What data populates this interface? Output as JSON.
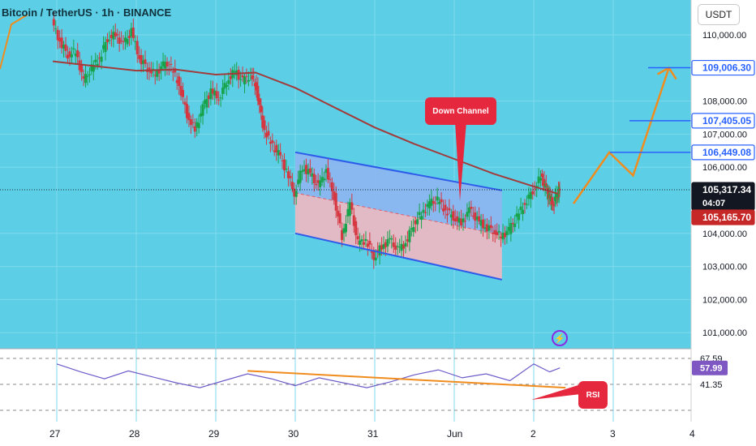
{
  "header": {
    "title": "Bitcoin / TetherUS · 1h · BINANCE"
  },
  "price_axis": {
    "currency": "USDT",
    "tick_labels": [
      "110,000.00",
      "108,000.00",
      "107,000.00",
      "106,000.00",
      "104,000.00",
      "103,000.00",
      "102,000.00",
      "101,000.00"
    ]
  },
  "price_badges": [
    {
      "value": "109,006.30",
      "style": "outline-blue"
    },
    {
      "value": "107,405.05",
      "style": "outline-blue"
    },
    {
      "value": "106,449.08",
      "style": "outline-blue"
    },
    {
      "value": "105,317.34",
      "style": "dark",
      "sub": "04:07"
    },
    {
      "value": "105,165.70",
      "style": "red"
    }
  ],
  "rsi_axis": {
    "labels": [
      "67.59",
      "57.99",
      "41.35"
    ]
  },
  "time_axis": {
    "labels": [
      "27",
      "28",
      "29",
      "30",
      "31",
      "Jun",
      "2",
      "3",
      "4"
    ]
  },
  "annotations": {
    "down_channel": "Down Channel",
    "rsi": "RSI"
  },
  "icons": {
    "alert": "lightning-bolt-icon"
  },
  "colors": {
    "background": "#5ccfe6",
    "bull": "#16a34a",
    "bear": "#d6363f",
    "ma_line": "#a23b3b",
    "channel_line": "#2f5bea",
    "channel_upper_fill": "#8fb4f0",
    "channel_lower_fill": "#f0b7c2",
    "projection": "#f08c1e",
    "rsi_line": "#6c5cc9",
    "rsi_trend": "#f08c1e",
    "badge_blue": "#2962ff",
    "badge_red": "#c62828"
  },
  "chart_data": {
    "type": "candlestick",
    "title": "Bitcoin / TetherUS · 1h · BINANCE",
    "timeframe": "1h",
    "x": [
      "27",
      "28",
      "29",
      "30",
      "31",
      "Jun",
      "2",
      "3",
      "4"
    ],
    "ylim": [
      100800,
      110500
    ],
    "y_ticks": [
      110000,
      108000,
      107000,
      106000,
      104000,
      103000,
      102000,
      101000
    ],
    "last_price": 105317.34,
    "bar_countdown": "04:07",
    "marked_price": 105165.7,
    "price_path": [
      {
        "t": -0.05,
        "p": 110400
      },
      {
        "t": 0.05,
        "p": 109800
      },
      {
        "t": 0.15,
        "p": 109400
      },
      {
        "t": 0.25,
        "p": 109500
      },
      {
        "t": 0.35,
        "p": 108600
      },
      {
        "t": 0.45,
        "p": 109000
      },
      {
        "t": 0.55,
        "p": 109300
      },
      {
        "t": 0.65,
        "p": 109900
      },
      {
        "t": 0.75,
        "p": 110000
      },
      {
        "t": 0.85,
        "p": 109700
      },
      {
        "t": 0.95,
        "p": 110100
      },
      {
        "t": 1.05,
        "p": 109300
      },
      {
        "t": 1.15,
        "p": 109000
      },
      {
        "t": 1.25,
        "p": 108800
      },
      {
        "t": 1.35,
        "p": 109100
      },
      {
        "t": 1.45,
        "p": 109000
      },
      {
        "t": 1.55,
        "p": 108500
      },
      {
        "t": 1.65,
        "p": 107600
      },
      {
        "t": 1.75,
        "p": 107100
      },
      {
        "t": 1.85,
        "p": 107800
      },
      {
        "t": 1.95,
        "p": 108300
      },
      {
        "t": 2.05,
        "p": 108100
      },
      {
        "t": 2.15,
        "p": 108600
      },
      {
        "t": 2.25,
        "p": 108900
      },
      {
        "t": 2.35,
        "p": 108600
      },
      {
        "t": 2.45,
        "p": 108800
      },
      {
        "t": 2.52,
        "p": 108400
      },
      {
        "t": 2.6,
        "p": 107300
      },
      {
        "t": 2.7,
        "p": 106700
      },
      {
        "t": 2.8,
        "p": 106400
      },
      {
        "t": 2.9,
        "p": 105900
      },
      {
        "t": 3.0,
        "p": 105200
      },
      {
        "t": 3.1,
        "p": 106000
      },
      {
        "t": 3.2,
        "p": 105800
      },
      {
        "t": 3.3,
        "p": 105400
      },
      {
        "t": 3.4,
        "p": 105900
      },
      {
        "t": 3.5,
        "p": 105100
      },
      {
        "t": 3.6,
        "p": 103900
      },
      {
        "t": 3.7,
        "p": 104900
      },
      {
        "t": 3.8,
        "p": 103700
      },
      {
        "t": 3.9,
        "p": 103800
      },
      {
        "t": 4.0,
        "p": 103300
      },
      {
        "t": 4.1,
        "p": 103600
      },
      {
        "t": 4.2,
        "p": 103800
      },
      {
        "t": 4.3,
        "p": 103500
      },
      {
        "t": 4.4,
        "p": 103700
      },
      {
        "t": 4.5,
        "p": 104300
      },
      {
        "t": 4.6,
        "p": 104600
      },
      {
        "t": 4.7,
        "p": 104900
      },
      {
        "t": 4.8,
        "p": 105000
      },
      {
        "t": 4.9,
        "p": 104700
      },
      {
        "t": 5.0,
        "p": 104500
      },
      {
        "t": 5.1,
        "p": 104300
      },
      {
        "t": 5.2,
        "p": 104700
      },
      {
        "t": 5.3,
        "p": 104400
      },
      {
        "t": 5.4,
        "p": 104200
      },
      {
        "t": 5.5,
        "p": 104100
      },
      {
        "t": 5.6,
        "p": 103900
      },
      {
        "t": 5.7,
        "p": 104100
      },
      {
        "t": 5.8,
        "p": 104500
      },
      {
        "t": 5.9,
        "p": 104900
      },
      {
        "t": 6.0,
        "p": 105300
      },
      {
        "t": 6.1,
        "p": 105700
      },
      {
        "t": 6.15,
        "p": 105400
      },
      {
        "t": 6.2,
        "p": 105100
      },
      {
        "t": 6.25,
        "p": 104900
      },
      {
        "t": 6.3,
        "p": 105200
      },
      {
        "t": 6.33,
        "p": 105317
      }
    ],
    "moving_average": [
      {
        "t": -0.05,
        "p": 109200
      },
      {
        "t": 0.5,
        "p": 109050
      },
      {
        "t": 1.0,
        "p": 108920
      },
      {
        "t": 1.5,
        "p": 108950
      },
      {
        "t": 2.0,
        "p": 108800
      },
      {
        "t": 2.5,
        "p": 108860
      },
      {
        "t": 3.0,
        "p": 108400
      },
      {
        "t": 3.5,
        "p": 107800
      },
      {
        "t": 4.0,
        "p": 107200
      },
      {
        "t": 4.5,
        "p": 106700
      },
      {
        "t": 5.0,
        "p": 106250
      },
      {
        "t": 5.5,
        "p": 105800
      },
      {
        "t": 6.0,
        "p": 105420
      },
      {
        "t": 6.3,
        "p": 105200
      }
    ],
    "down_channel": {
      "upper": [
        {
          "t": 3.0,
          "p": 106450
        },
        {
          "t": 5.6,
          "p": 105300
        }
      ],
      "lower": [
        {
          "t": 3.0,
          "p": 104000
        },
        {
          "t": 5.6,
          "p": 102600
        }
      ],
      "mid": [
        {
          "t": 3.0,
          "p": 105225
        },
        {
          "t": 5.6,
          "p": 103950
        }
      ]
    },
    "projection_path": [
      {
        "t": 6.5,
        "p": 104900
      },
      {
        "t": 6.95,
        "p": 106449
      },
      {
        "t": 7.25,
        "p": 105750
      },
      {
        "t": 7.7,
        "p": 109006
      }
    ],
    "levels": [
      109006.3,
      107405.05,
      106449.08
    ],
    "rsi": {
      "ylim": [
        33,
        72
      ],
      "guides": [
        67.59,
        41.35
      ],
      "current": 57.99,
      "values": [
        {
          "t": 0.0,
          "v": 62
        },
        {
          "t": 0.3,
          "v": 54
        },
        {
          "t": 0.6,
          "v": 47
        },
        {
          "t": 0.9,
          "v": 55
        },
        {
          "t": 1.2,
          "v": 49
        },
        {
          "t": 1.5,
          "v": 43
        },
        {
          "t": 1.8,
          "v": 38
        },
        {
          "t": 2.1,
          "v": 45
        },
        {
          "t": 2.4,
          "v": 52
        },
        {
          "t": 2.7,
          "v": 47
        },
        {
          "t": 3.0,
          "v": 40
        },
        {
          "t": 3.3,
          "v": 48
        },
        {
          "t": 3.6,
          "v": 43
        },
        {
          "t": 3.9,
          "v": 38
        },
        {
          "t": 4.2,
          "v": 44
        },
        {
          "t": 4.5,
          "v": 51
        },
        {
          "t": 4.8,
          "v": 56
        },
        {
          "t": 5.1,
          "v": 48
        },
        {
          "t": 5.4,
          "v": 52
        },
        {
          "t": 5.7,
          "v": 45
        },
        {
          "t": 6.0,
          "v": 62
        },
        {
          "t": 6.2,
          "v": 54
        },
        {
          "t": 6.33,
          "v": 58
        }
      ],
      "trendline": [
        {
          "t": 2.4,
          "v": 55
        },
        {
          "t": 6.4,
          "v": 38
        }
      ]
    }
  }
}
